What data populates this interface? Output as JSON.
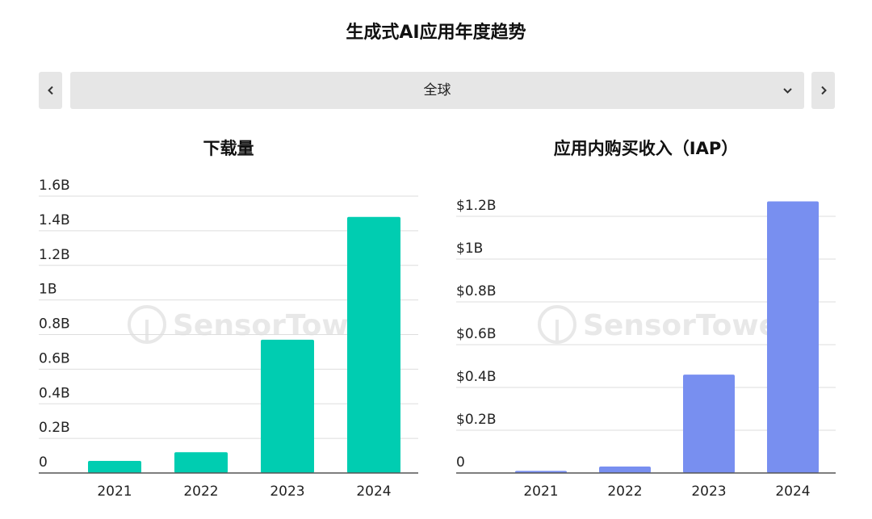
{
  "page": {
    "title": "生成式AI应用年度趋势"
  },
  "region_selector": {
    "value": "全球"
  },
  "watermark": "SensorTower",
  "colors": {
    "downloads": "#00cdb1",
    "iap": "#788ff0",
    "grid": "#dedede",
    "axis": "#555555",
    "control_bg": "#e6e6e6"
  },
  "chart_data": [
    {
      "type": "bar",
      "title": "下载量",
      "categories": [
        "2021",
        "2022",
        "2023",
        "2024"
      ],
      "values": [
        0.07,
        0.12,
        0.77,
        1.48
      ],
      "ylim": [
        0,
        1.6
      ],
      "yticks": [
        0,
        0.2,
        0.4,
        0.6,
        0.8,
        1.0,
        1.2,
        1.4,
        1.6
      ],
      "ytick_labels": [
        "0",
        "0.2B",
        "0.4B",
        "0.6B",
        "0.8B",
        "1B",
        "1.2B",
        "1.4B",
        "1.6B"
      ],
      "unit": "B",
      "color": "#00cdb1",
      "grid": true,
      "xlabel": "",
      "ylabel": ""
    },
    {
      "type": "bar",
      "title": "应用内购买收入（IAP）",
      "categories": [
        "2021",
        "2022",
        "2023",
        "2024"
      ],
      "values": [
        0.01,
        0.03,
        0.46,
        1.27
      ],
      "ylim": [
        0,
        1.2
      ],
      "yticks": [
        0,
        0.2,
        0.4,
        0.6,
        0.8,
        1.0,
        1.2
      ],
      "ytick_labels": [
        "0",
        "$0.2B",
        "$0.4B",
        "$0.6B",
        "$0.8B",
        "$1B",
        "$1.2B"
      ],
      "unit": "$B",
      "color": "#788ff0",
      "grid": true,
      "xlabel": "",
      "ylabel": ""
    }
  ]
}
